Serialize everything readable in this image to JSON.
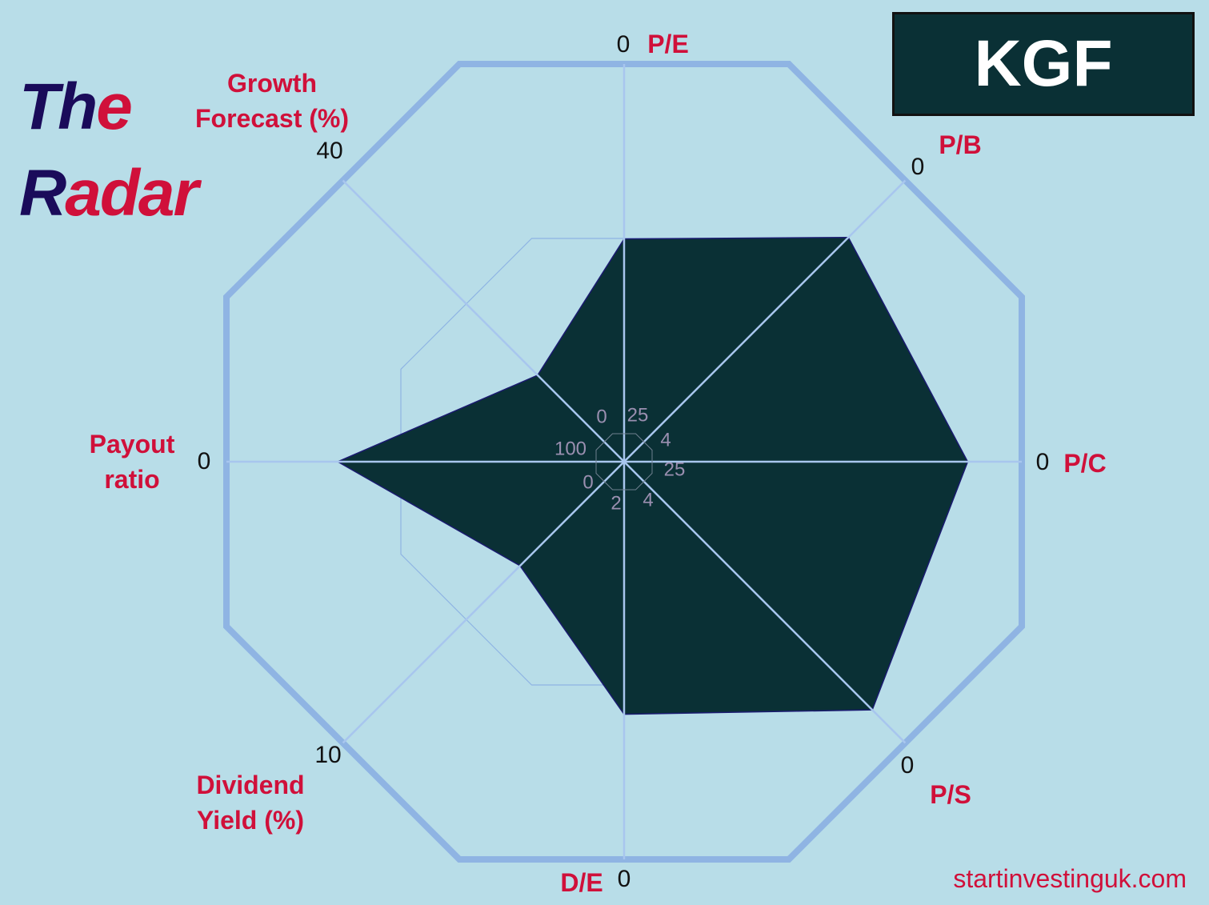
{
  "chart_data": {
    "type": "radar",
    "title_lines": [
      [
        {
          "text": "Th",
          "color": "#1a0b5a"
        },
        {
          "text": "e",
          "color": "#d0103a"
        }
      ],
      [
        {
          "text": "R",
          "color": "#1a0b5a"
        },
        {
          "text": "adar",
          "color": "#d0103a"
        }
      ]
    ],
    "ticker": "KGF",
    "source": "startinvestinguk.com",
    "categories": [
      "P/E",
      "P/B",
      "P/C",
      "P/S",
      "D/E",
      "Dividend Yield (%)",
      "Payout ratio",
      "Growth Forecast (%)"
    ],
    "ranges": [
      {
        "center": 25,
        "outer": 0
      },
      {
        "center": 4,
        "outer": 0
      },
      {
        "center": 25,
        "outer": 0
      },
      {
        "center": 4,
        "outer": 0
      },
      {
        "center": 2,
        "outer": 0
      },
      {
        "center": 0,
        "outer": 10
      },
      {
        "center": 100,
        "outer": 0
      },
      {
        "center": 0,
        "outer": 40
      }
    ],
    "values": [
      11,
      0.81,
      3.4,
      0.47,
      0.73,
      3.7,
      28,
      12.3
    ],
    "color": "#0a3035"
  }
}
